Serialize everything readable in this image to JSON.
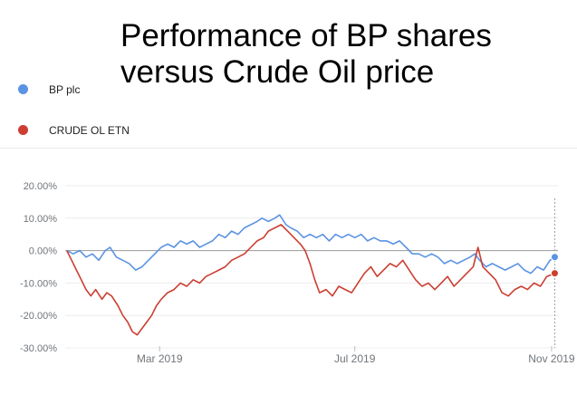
{
  "title_lines": [
    "Performance of BP shares",
    "versus Crude Oil price"
  ],
  "legend": [
    {
      "name": "BP plc",
      "color": "#5b93e3"
    },
    {
      "name": "CRUDE OL ETN",
      "color": "#cc3e31"
    }
  ],
  "chart_data": {
    "type": "line",
    "title": "Performance of BP shares versus Crude Oil price",
    "xlabel": "",
    "ylabel": "",
    "x_range": [
      "2019-01-01",
      "2019-11-05"
    ],
    "x_ticks": [
      {
        "date": "2019-03-01",
        "label": "Mar 2019"
      },
      {
        "date": "2019-07-01",
        "label": "Jul 2019"
      },
      {
        "date": "2019-11-01",
        "label": "Nov 2019"
      }
    ],
    "ylim": [
      -30,
      20
    ],
    "y_ticks": [
      {
        "value": 20,
        "label": "20.00%"
      },
      {
        "value": 10,
        "label": "10.00%"
      },
      {
        "value": 0,
        "label": "0.00%"
      },
      {
        "value": -10,
        "label": "-10.00%"
      },
      {
        "value": -20,
        "label": "-20.00%"
      },
      {
        "value": -30,
        "label": "-30.00%"
      }
    ],
    "grid": true,
    "series": [
      {
        "name": "BP plc",
        "color": "#5b93e3",
        "points": [
          [
            "2019-01-02",
            0
          ],
          [
            "2019-01-06",
            -1
          ],
          [
            "2019-01-10",
            0
          ],
          [
            "2019-01-14",
            -2
          ],
          [
            "2019-01-18",
            -1
          ],
          [
            "2019-01-22",
            -3
          ],
          [
            "2019-01-26",
            0
          ],
          [
            "2019-01-29",
            1
          ],
          [
            "2019-02-02",
            -2
          ],
          [
            "2019-02-06",
            -3
          ],
          [
            "2019-02-10",
            -4
          ],
          [
            "2019-02-14",
            -6
          ],
          [
            "2019-02-18",
            -5
          ],
          [
            "2019-02-22",
            -3
          ],
          [
            "2019-02-26",
            -1
          ],
          [
            "2019-03-02",
            1
          ],
          [
            "2019-03-06",
            2
          ],
          [
            "2019-03-10",
            1
          ],
          [
            "2019-03-14",
            3
          ],
          [
            "2019-03-18",
            2
          ],
          [
            "2019-03-22",
            3
          ],
          [
            "2019-03-26",
            1
          ],
          [
            "2019-03-30",
            2
          ],
          [
            "2019-04-03",
            3
          ],
          [
            "2019-04-07",
            5
          ],
          [
            "2019-04-11",
            4
          ],
          [
            "2019-04-15",
            6
          ],
          [
            "2019-04-19",
            5
          ],
          [
            "2019-04-23",
            7
          ],
          [
            "2019-04-27",
            8
          ],
          [
            "2019-05-01",
            9
          ],
          [
            "2019-05-04",
            10
          ],
          [
            "2019-05-08",
            9
          ],
          [
            "2019-05-12",
            10
          ],
          [
            "2019-05-15",
            11
          ],
          [
            "2019-05-19",
            8
          ],
          [
            "2019-05-22",
            7
          ],
          [
            "2019-05-26",
            6
          ],
          [
            "2019-05-30",
            4
          ],
          [
            "2019-06-03",
            5
          ],
          [
            "2019-06-07",
            4
          ],
          [
            "2019-06-11",
            5
          ],
          [
            "2019-06-15",
            3
          ],
          [
            "2019-06-19",
            5
          ],
          [
            "2019-06-23",
            4
          ],
          [
            "2019-06-27",
            5
          ],
          [
            "2019-07-01",
            4
          ],
          [
            "2019-07-05",
            5
          ],
          [
            "2019-07-09",
            3
          ],
          [
            "2019-07-13",
            4
          ],
          [
            "2019-07-17",
            3
          ],
          [
            "2019-07-21",
            3
          ],
          [
            "2019-07-25",
            2
          ],
          [
            "2019-07-29",
            3
          ],
          [
            "2019-08-02",
            1
          ],
          [
            "2019-08-06",
            -1
          ],
          [
            "2019-08-10",
            -1
          ],
          [
            "2019-08-14",
            -2
          ],
          [
            "2019-08-18",
            -1
          ],
          [
            "2019-08-22",
            -2
          ],
          [
            "2019-08-26",
            -4
          ],
          [
            "2019-08-30",
            -3
          ],
          [
            "2019-09-03",
            -4
          ],
          [
            "2019-09-07",
            -3
          ],
          [
            "2019-09-11",
            -2
          ],
          [
            "2019-09-14",
            -1
          ],
          [
            "2019-09-17",
            -3
          ],
          [
            "2019-09-21",
            -5
          ],
          [
            "2019-09-25",
            -4
          ],
          [
            "2019-09-29",
            -5
          ],
          [
            "2019-10-03",
            -6
          ],
          [
            "2019-10-07",
            -5
          ],
          [
            "2019-10-11",
            -4
          ],
          [
            "2019-10-15",
            -6
          ],
          [
            "2019-10-19",
            -7
          ],
          [
            "2019-10-23",
            -5
          ],
          [
            "2019-10-27",
            -6
          ],
          [
            "2019-10-31",
            -3
          ],
          [
            "2019-11-03",
            -2
          ]
        ]
      },
      {
        "name": "CRUDE OL ETN",
        "color": "#cc3e31",
        "points": [
          [
            "2019-01-02",
            0
          ],
          [
            "2019-01-05",
            -3
          ],
          [
            "2019-01-08",
            -6
          ],
          [
            "2019-01-11",
            -9
          ],
          [
            "2019-01-14",
            -12
          ],
          [
            "2019-01-17",
            -14
          ],
          [
            "2019-01-20",
            -12
          ],
          [
            "2019-01-24",
            -15
          ],
          [
            "2019-01-27",
            -13
          ],
          [
            "2019-01-30",
            -14
          ],
          [
            "2019-02-03",
            -17
          ],
          [
            "2019-02-06",
            -20
          ],
          [
            "2019-02-09",
            -22
          ],
          [
            "2019-02-12",
            -25
          ],
          [
            "2019-02-15",
            -26
          ],
          [
            "2019-02-18",
            -24
          ],
          [
            "2019-02-21",
            -22
          ],
          [
            "2019-02-24",
            -20
          ],
          [
            "2019-02-27",
            -17
          ],
          [
            "2019-03-02",
            -15
          ],
          [
            "2019-03-06",
            -13
          ],
          [
            "2019-03-10",
            -12
          ],
          [
            "2019-03-14",
            -10
          ],
          [
            "2019-03-18",
            -11
          ],
          [
            "2019-03-22",
            -9
          ],
          [
            "2019-03-26",
            -10
          ],
          [
            "2019-03-30",
            -8
          ],
          [
            "2019-04-03",
            -7
          ],
          [
            "2019-04-07",
            -6
          ],
          [
            "2019-04-11",
            -5
          ],
          [
            "2019-04-15",
            -3
          ],
          [
            "2019-04-19",
            -2
          ],
          [
            "2019-04-23",
            -1
          ],
          [
            "2019-04-27",
            1
          ],
          [
            "2019-05-01",
            3
          ],
          [
            "2019-05-05",
            4
          ],
          [
            "2019-05-08",
            6
          ],
          [
            "2019-05-12",
            7
          ],
          [
            "2019-05-16",
            8
          ],
          [
            "2019-05-20",
            6
          ],
          [
            "2019-05-24",
            4
          ],
          [
            "2019-05-28",
            2
          ],
          [
            "2019-05-31",
            0
          ],
          [
            "2019-06-03",
            -4
          ],
          [
            "2019-06-06",
            -9
          ],
          [
            "2019-06-09",
            -13
          ],
          [
            "2019-06-13",
            -12
          ],
          [
            "2019-06-17",
            -14
          ],
          [
            "2019-06-21",
            -11
          ],
          [
            "2019-06-25",
            -12
          ],
          [
            "2019-06-29",
            -13
          ],
          [
            "2019-07-03",
            -10
          ],
          [
            "2019-07-07",
            -7
          ],
          [
            "2019-07-11",
            -5
          ],
          [
            "2019-07-15",
            -8
          ],
          [
            "2019-07-19",
            -6
          ],
          [
            "2019-07-23",
            -4
          ],
          [
            "2019-07-27",
            -5
          ],
          [
            "2019-07-31",
            -3
          ],
          [
            "2019-08-04",
            -6
          ],
          [
            "2019-08-08",
            -9
          ],
          [
            "2019-08-12",
            -11
          ],
          [
            "2019-08-16",
            -10
          ],
          [
            "2019-08-20",
            -12
          ],
          [
            "2019-08-24",
            -10
          ],
          [
            "2019-08-28",
            -8
          ],
          [
            "2019-09-01",
            -11
          ],
          [
            "2019-09-05",
            -9
          ],
          [
            "2019-09-09",
            -7
          ],
          [
            "2019-09-13",
            -5
          ],
          [
            "2019-09-16",
            1
          ],
          [
            "2019-09-19",
            -5
          ],
          [
            "2019-09-23",
            -7
          ],
          [
            "2019-09-27",
            -9
          ],
          [
            "2019-10-01",
            -13
          ],
          [
            "2019-10-05",
            -14
          ],
          [
            "2019-10-09",
            -12
          ],
          [
            "2019-10-13",
            -11
          ],
          [
            "2019-10-17",
            -12
          ],
          [
            "2019-10-21",
            -10
          ],
          [
            "2019-10-25",
            -11
          ],
          [
            "2019-10-29",
            -8
          ],
          [
            "2019-11-03",
            -7
          ]
        ]
      }
    ]
  }
}
